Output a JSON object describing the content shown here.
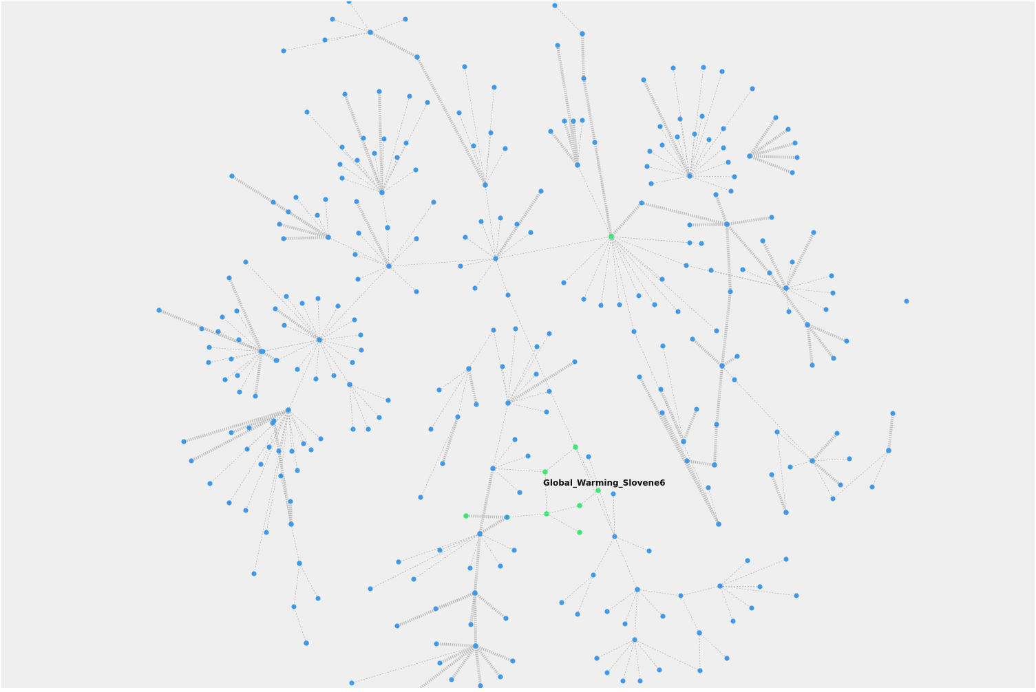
{
  "graph": {
    "node_color": "#3f98e8",
    "highlight_color": "#3ee673",
    "edge_color": "#b4b4b4",
    "selected_label": "Global_Warming_Slovene6"
  }
}
